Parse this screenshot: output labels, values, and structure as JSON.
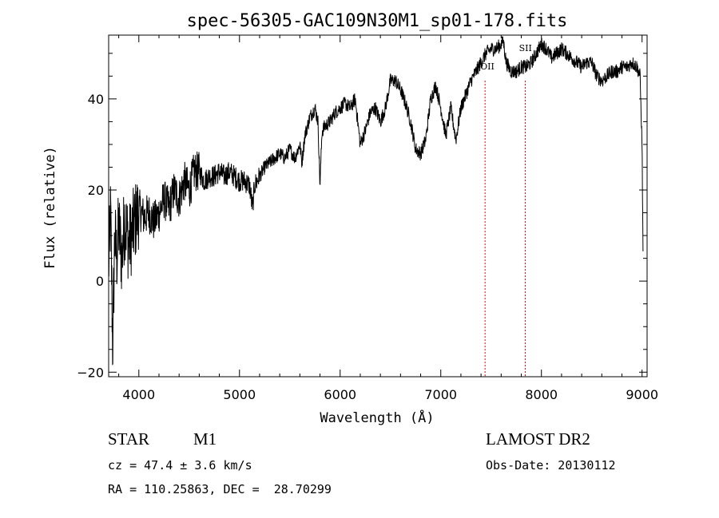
{
  "chart_data": {
    "type": "line",
    "title": "spec-56305-GAC109N30M1_sp01-178.fits",
    "xlabel": "Wavelength (Å)",
    "ylabel": "Flux (relative)",
    "xlim": [
      3700,
      9050
    ],
    "ylim": [
      -21,
      54
    ],
    "xticks": [
      4000,
      5000,
      6000,
      7000,
      8000,
      9000
    ],
    "yticks": [
      -20,
      0,
      20,
      40
    ],
    "grid": false,
    "line_color": "#000000",
    "marker_color": "#cc0000",
    "lines": [
      {
        "label": "OII",
        "x": 7440
      },
      {
        "label": "SII",
        "x": 7840
      }
    ],
    "series": [
      {
        "x": [
          3700,
          3720,
          3740,
          3760,
          3780,
          3800,
          3830,
          3860,
          3900,
          3950,
          4000,
          4050,
          4100,
          4150,
          4200,
          4250,
          4300,
          4350,
          4400,
          4450,
          4500,
          4550,
          4600,
          4650,
          4700,
          4750,
          4800,
          4850,
          4900,
          4950,
          5000,
          5050,
          5100,
          5130,
          5150,
          5200,
          5250,
          5300,
          5350,
          5400,
          5450,
          5500,
          5550,
          5600,
          5620,
          5650,
          5700,
          5750,
          5780,
          5800,
          5820,
          5850,
          5900,
          5950,
          6000,
          6050,
          6100,
          6150,
          6200,
          6250,
          6300,
          6350,
          6400,
          6450,
          6500,
          6550,
          6600,
          6650,
          6700,
          6750,
          6800,
          6850,
          6900,
          6950,
          7000,
          7050,
          7100,
          7150,
          7200,
          7250,
          7300,
          7350,
          7400,
          7450,
          7500,
          7550,
          7600,
          7620,
          7650,
          7700,
          7750,
          7800,
          7850,
          7900,
          7950,
          8000,
          8050,
          8100,
          8150,
          8200,
          8250,
          8300,
          8350,
          8400,
          8450,
          8500,
          8550,
          8600,
          8650,
          8700,
          8750,
          8800,
          8850,
          8900,
          8950,
          8980,
          9000,
          9010
        ],
        "y": [
          3,
          15,
          -15,
          10,
          5,
          12,
          5,
          14,
          8,
          12,
          16,
          14,
          15,
          13,
          15,
          18,
          16,
          20,
          18,
          22,
          20,
          24,
          24,
          22,
          23,
          23,
          24,
          23,
          24,
          23,
          22,
          22,
          21,
          16,
          21,
          23,
          25,
          26,
          27,
          28,
          27,
          29,
          27,
          30,
          26,
          32,
          36,
          38,
          35,
          21,
          33,
          34,
          35,
          37,
          38,
          39,
          38,
          40,
          30,
          33,
          37,
          38,
          35,
          38,
          44,
          44,
          42,
          39,
          35,
          29,
          28,
          31,
          40,
          43,
          38,
          32,
          38,
          31,
          38,
          41,
          44,
          46,
          48,
          50,
          51,
          51,
          52,
          53,
          48,
          46,
          46,
          47,
          47,
          48,
          50,
          52,
          51,
          49,
          50,
          51,
          50,
          49,
          48,
          47,
          48,
          48,
          45,
          44,
          45,
          46,
          46,
          47,
          47,
          48,
          47,
          45,
          30,
          5
        ]
      }
    ]
  },
  "info": {
    "object_class": "STAR",
    "subclass": "M1",
    "survey": "LAMOST DR2",
    "redshift": "cz = 47.4 ± 3.6 km/s",
    "obs_date": "Obs-Date: 20130112",
    "coords": "RA = 110.25863, DEC =  28.70299"
  }
}
